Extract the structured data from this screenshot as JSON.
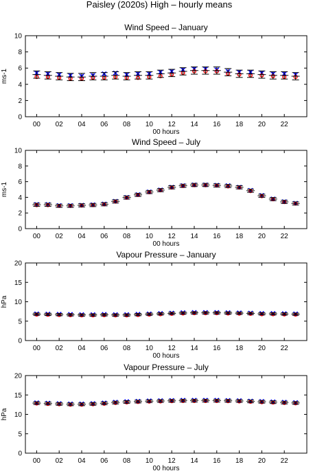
{
  "figure": {
    "title": "Paisley (2020s) High – hourly means"
  },
  "chart_data": [
    {
      "type": "scatter",
      "title": "Wind Speed – January",
      "xlabel": "00 hours",
      "ylabel": "ms-1",
      "xlim": [
        -1,
        24
      ],
      "ylim": [
        0,
        10
      ],
      "xticks": [
        "00",
        "02",
        "04",
        "06",
        "08",
        "10",
        "12",
        "14",
        "16",
        "18",
        "20",
        "22"
      ],
      "yticks": [
        "0",
        "2",
        "4",
        "6",
        "8",
        "10"
      ],
      "x": [
        0,
        1,
        2,
        3,
        4,
        5,
        6,
        7,
        8,
        9,
        10,
        11,
        12,
        13,
        14,
        15,
        16,
        17,
        18,
        19,
        20,
        21,
        22,
        23
      ],
      "series": [
        {
          "name": "",
          "marker": "x",
          "color": "#0000ff",
          "values": [
            5.4,
            5.3,
            5.2,
            5.1,
            5.0,
            5.1,
            5.3,
            5.4,
            5.2,
            5.3,
            5.3,
            5.5,
            5.6,
            5.8,
            5.9,
            5.9,
            5.8,
            5.6,
            5.5,
            5.5,
            5.4,
            5.3,
            5.3,
            5.2
          ]
        },
        {
          "name": "",
          "marker": "circle",
          "color": "#ff0000",
          "values": [
            4.9,
            4.9,
            4.8,
            4.7,
            4.7,
            4.8,
            4.8,
            4.9,
            4.8,
            4.8,
            4.9,
            5.0,
            5.2,
            5.4,
            5.6,
            5.6,
            5.6,
            5.3,
            5.2,
            5.1,
            5.1,
            5.0,
            4.9,
            4.9
          ]
        },
        {
          "name": "",
          "marker": "errorbar",
          "color": "#000000",
          "values": [
            5.2,
            5.1,
            5.0,
            4.9,
            4.9,
            5.0,
            5.0,
            5.1,
            5.0,
            5.1,
            5.1,
            5.3,
            5.4,
            5.6,
            5.7,
            5.7,
            5.7,
            5.5,
            5.3,
            5.3,
            5.2,
            5.1,
            5.1,
            5.0
          ],
          "errors": [
            0.45,
            0.45,
            0.45,
            0.45,
            0.45,
            0.45,
            0.45,
            0.45,
            0.45,
            0.45,
            0.45,
            0.45,
            0.45,
            0.45,
            0.45,
            0.45,
            0.45,
            0.45,
            0.45,
            0.45,
            0.45,
            0.45,
            0.45,
            0.45
          ]
        }
      ]
    },
    {
      "type": "scatter",
      "title": "Wind Speed – July",
      "xlabel": "00 hours",
      "ylabel": "ms-1",
      "xlim": [
        -1,
        24
      ],
      "ylim": [
        0,
        10
      ],
      "xticks": [
        "00",
        "02",
        "04",
        "06",
        "08",
        "10",
        "12",
        "14",
        "16",
        "18",
        "20",
        "22"
      ],
      "yticks": [
        "0",
        "2",
        "4",
        "6",
        "8",
        "10"
      ],
      "x": [
        0,
        1,
        2,
        3,
        4,
        5,
        6,
        7,
        8,
        9,
        10,
        11,
        12,
        13,
        14,
        15,
        16,
        17,
        18,
        19,
        20,
        21,
        22,
        23
      ],
      "series": [
        {
          "name": "",
          "marker": "x",
          "color": "#0000ff",
          "values": [
            3.1,
            3.1,
            2.95,
            2.95,
            3.0,
            3.05,
            3.15,
            3.5,
            4.0,
            4.35,
            4.7,
            4.95,
            5.3,
            5.5,
            5.6,
            5.6,
            5.55,
            5.5,
            5.3,
            4.9,
            4.25,
            3.8,
            3.45,
            3.25
          ]
        },
        {
          "name": "",
          "marker": "circle",
          "color": "#ff0000",
          "values": [
            3.0,
            3.0,
            2.9,
            2.9,
            2.95,
            3.0,
            3.1,
            3.45,
            3.95,
            4.3,
            4.65,
            4.9,
            5.25,
            5.45,
            5.55,
            5.55,
            5.5,
            5.4,
            5.25,
            4.8,
            4.15,
            3.75,
            3.4,
            3.2
          ]
        },
        {
          "name": "",
          "marker": "errorbar",
          "color": "#000000",
          "values": [
            3.05,
            3.05,
            2.92,
            2.92,
            2.98,
            3.02,
            3.12,
            3.48,
            3.98,
            4.32,
            4.68,
            4.92,
            5.28,
            5.48,
            5.58,
            5.58,
            5.52,
            5.45,
            5.28,
            4.85,
            4.2,
            3.78,
            3.42,
            3.22
          ],
          "errors": [
            0.2,
            0.2,
            0.2,
            0.2,
            0.2,
            0.2,
            0.2,
            0.2,
            0.2,
            0.2,
            0.2,
            0.2,
            0.2,
            0.2,
            0.2,
            0.2,
            0.2,
            0.2,
            0.2,
            0.2,
            0.2,
            0.2,
            0.2,
            0.2
          ]
        }
      ]
    },
    {
      "type": "scatter",
      "title": "Vapour Pressure – January",
      "xlabel": "00 hours",
      "ylabel": "hPa",
      "xlim": [
        -1,
        24
      ],
      "ylim": [
        0,
        20
      ],
      "xticks": [
        "00",
        "02",
        "04",
        "06",
        "08",
        "10",
        "12",
        "14",
        "16",
        "18",
        "20",
        "22"
      ],
      "yticks": [
        "0",
        "5",
        "10",
        "15",
        "20"
      ],
      "x": [
        0,
        1,
        2,
        3,
        4,
        5,
        6,
        7,
        8,
        9,
        10,
        11,
        12,
        13,
        14,
        15,
        16,
        17,
        18,
        19,
        20,
        21,
        22,
        23
      ],
      "series": [
        {
          "name": "",
          "marker": "x",
          "color": "#0000ff",
          "values": [
            6.9,
            6.85,
            6.8,
            6.75,
            6.7,
            6.7,
            6.75,
            6.7,
            6.7,
            6.8,
            6.9,
            7.0,
            7.1,
            7.2,
            7.25,
            7.25,
            7.25,
            7.2,
            7.15,
            7.1,
            7.0,
            7.0,
            6.95,
            6.9
          ]
        },
        {
          "name": "",
          "marker": "circle",
          "color": "#ff0000",
          "values": [
            6.7,
            6.65,
            6.6,
            6.55,
            6.5,
            6.5,
            6.55,
            6.5,
            6.5,
            6.6,
            6.7,
            6.8,
            6.9,
            7.0,
            7.05,
            7.05,
            7.05,
            7.0,
            6.95,
            6.9,
            6.8,
            6.8,
            6.75,
            6.7
          ]
        },
        {
          "name": "",
          "marker": "errorbar",
          "color": "#000000",
          "values": [
            6.8,
            6.75,
            6.7,
            6.65,
            6.6,
            6.6,
            6.65,
            6.6,
            6.6,
            6.7,
            6.8,
            6.9,
            7.0,
            7.1,
            7.15,
            7.15,
            7.15,
            7.1,
            7.05,
            7.0,
            6.9,
            6.9,
            6.85,
            6.8
          ],
          "errors": [
            0.3,
            0.3,
            0.3,
            0.3,
            0.3,
            0.3,
            0.3,
            0.3,
            0.3,
            0.3,
            0.3,
            0.3,
            0.3,
            0.3,
            0.3,
            0.3,
            0.3,
            0.3,
            0.3,
            0.3,
            0.3,
            0.3,
            0.3,
            0.3
          ]
        }
      ]
    },
    {
      "type": "scatter",
      "title": "Vapour Pressure – July",
      "xlabel": "00 hours",
      "ylabel": "hPa",
      "xlim": [
        -1,
        24
      ],
      "ylim": [
        0,
        20
      ],
      "xticks": [
        "00",
        "02",
        "04",
        "06",
        "08",
        "10",
        "12",
        "14",
        "16",
        "18",
        "20",
        "22"
      ],
      "yticks": [
        "0",
        "5",
        "10",
        "15",
        "20"
      ],
      "x": [
        0,
        1,
        2,
        3,
        4,
        5,
        6,
        7,
        8,
        9,
        10,
        11,
        12,
        13,
        14,
        15,
        16,
        17,
        18,
        19,
        20,
        21,
        22,
        23
      ],
      "series": [
        {
          "name": "",
          "marker": "x",
          "color": "#0000ff",
          "values": [
            13.0,
            12.9,
            12.8,
            12.7,
            12.7,
            12.8,
            12.95,
            13.15,
            13.3,
            13.4,
            13.5,
            13.55,
            13.6,
            13.65,
            13.65,
            13.65,
            13.65,
            13.6,
            13.55,
            13.45,
            13.35,
            13.25,
            13.15,
            13.05
          ]
        },
        {
          "name": "",
          "marker": "circle",
          "color": "#ff0000",
          "values": [
            12.8,
            12.7,
            12.6,
            12.5,
            12.5,
            12.6,
            12.75,
            12.95,
            13.1,
            13.2,
            13.3,
            13.35,
            13.4,
            13.45,
            13.45,
            13.45,
            13.45,
            13.4,
            13.35,
            13.25,
            13.15,
            13.05,
            12.95,
            12.85
          ]
        },
        {
          "name": "",
          "marker": "errorbar",
          "color": "#000000",
          "values": [
            12.9,
            12.8,
            12.7,
            12.6,
            12.6,
            12.7,
            12.85,
            13.05,
            13.2,
            13.3,
            13.4,
            13.45,
            13.5,
            13.55,
            13.55,
            13.55,
            13.55,
            13.5,
            13.45,
            13.35,
            13.25,
            13.15,
            13.05,
            12.95
          ],
          "errors": [
            0.35,
            0.35,
            0.35,
            0.35,
            0.35,
            0.35,
            0.35,
            0.35,
            0.35,
            0.35,
            0.35,
            0.35,
            0.35,
            0.35,
            0.35,
            0.35,
            0.35,
            0.35,
            0.35,
            0.35,
            0.35,
            0.35,
            0.35,
            0.35
          ]
        }
      ]
    }
  ]
}
